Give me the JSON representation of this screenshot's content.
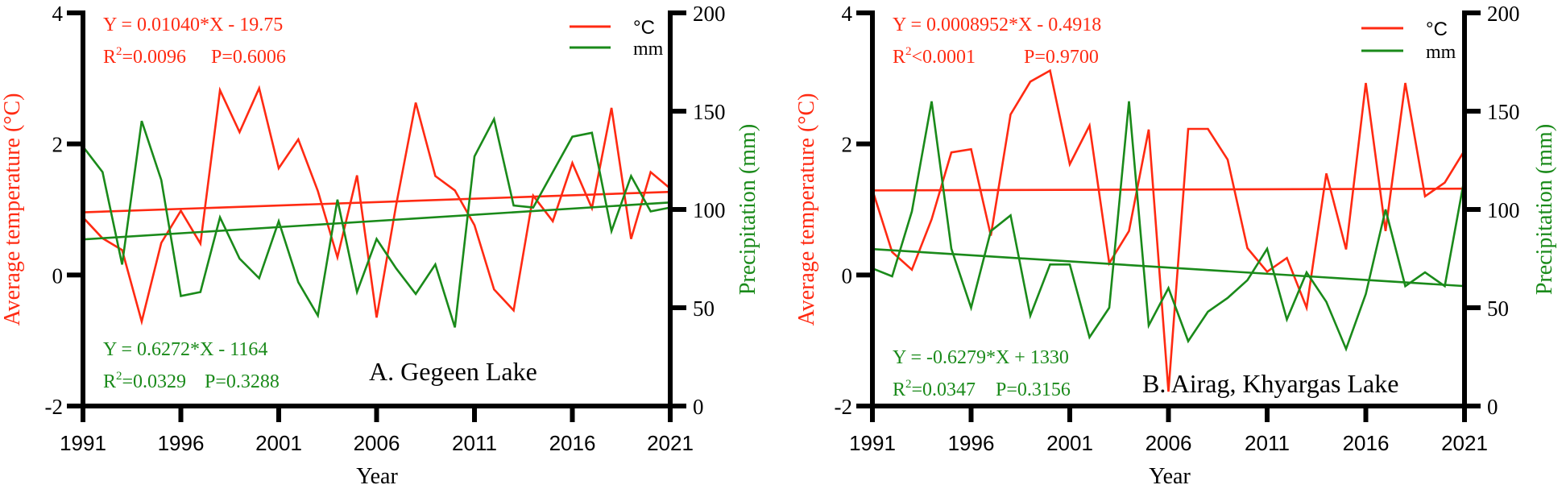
{
  "chart_data": [
    {
      "type": "line",
      "panel": "A",
      "title": "A. Gegeen Lake",
      "xlabel": "Year",
      "ylabel_left": "Average temperature (°C)",
      "ylabel_right": "Precipitation (mm)",
      "xlim": [
        1991,
        2021
      ],
      "ylim_left": [
        -2,
        4
      ],
      "ylim_right": [
        0,
        200
      ],
      "xticks": [
        "1991",
        "1996",
        "2001",
        "2006",
        "2011",
        "2016",
        "2021"
      ],
      "xtick_values": [
        1991,
        1996,
        2001,
        2006,
        2011,
        2016,
        2021
      ],
      "yticks_left": [
        "-2",
        "0",
        "2",
        "4"
      ],
      "ytick_left_values": [
        -2,
        0,
        2,
        4
      ],
      "yticks_right": [
        "0",
        "50",
        "100",
        "150",
        "200"
      ],
      "ytick_right_values": [
        0,
        50,
        100,
        150,
        200
      ],
      "grid": false,
      "legend": {
        "placement": "top-right",
        "entries": [
          "°C",
          "mm"
        ]
      },
      "x": [
        1991,
        1992,
        1993,
        1994,
        1995,
        1996,
        1997,
        1998,
        1999,
        2000,
        2001,
        2002,
        2003,
        2004,
        2005,
        2006,
        2007,
        2008,
        2009,
        2010,
        2011,
        2012,
        2013,
        2014,
        2015,
        2016,
        2017,
        2018,
        2019,
        2020,
        2021
      ],
      "series": [
        {
          "name": "°C",
          "axis": "left",
          "color": "#ff2a12",
          "values": [
            0.88,
            0.56,
            0.38,
            -0.71,
            0.49,
            0.98,
            0.48,
            2.82,
            2.18,
            2.85,
            1.63,
            2.07,
            1.28,
            0.27,
            1.52,
            -0.65,
            1.07,
            2.63,
            1.51,
            1.29,
            0.76,
            -0.22,
            -0.54,
            1.21,
            0.82,
            1.71,
            1.02,
            2.55,
            0.55,
            1.57,
            1.32
          ],
          "trend": {
            "slope": 0.0104,
            "intercept": -19.75
          },
          "equation": "Y = 0.01040*X - 19.75",
          "r2_label": "R",
          "r2_value": "=0.0096",
          "p_label": "P=0.6006"
        },
        {
          "name": "mm",
          "axis": "right",
          "color": "#1a8a1a",
          "values": [
            132,
            119,
            72,
            145,
            115,
            56,
            58,
            96,
            75,
            65,
            94,
            63,
            46,
            105,
            58,
            85,
            70,
            57,
            72,
            40,
            127,
            146,
            102,
            101,
            119,
            137,
            139,
            89,
            117,
            99,
            101
          ],
          "trend": {
            "slope": 0.6272,
            "intercept": -1164
          },
          "equation": "Y = 0.6272*X - 1164",
          "r2_label": "R",
          "r2_value": "=0.0329",
          "p_label": "P=0.3288"
        }
      ]
    },
    {
      "type": "line",
      "panel": "B",
      "title": "B. Airag, Khyargas Lake",
      "xlabel": "Year",
      "ylabel_left": "Average temperature (°C)",
      "ylabel_right": "Precipitation (mm)",
      "xlim": [
        1991,
        2021
      ],
      "ylim_left": [
        -2,
        4
      ],
      "ylim_right": [
        0,
        200
      ],
      "xticks": [
        "1991",
        "1996",
        "2001",
        "2006",
        "2011",
        "2016",
        "2021"
      ],
      "xtick_values": [
        1991,
        1996,
        2001,
        2006,
        2011,
        2016,
        2021
      ],
      "yticks_left": [
        "-2",
        "0",
        "2",
        "4"
      ],
      "ytick_left_values": [
        -2,
        0,
        2,
        4
      ],
      "yticks_right": [
        "0",
        "50",
        "100",
        "150",
        "200"
      ],
      "ytick_right_values": [
        0,
        50,
        100,
        150,
        200
      ],
      "grid": false,
      "legend": {
        "placement": "top-right",
        "entries": [
          "°C",
          "mm"
        ]
      },
      "x": [
        1991,
        1992,
        1993,
        1994,
        1995,
        1996,
        1997,
        1998,
        1999,
        2000,
        2001,
        2002,
        2003,
        2004,
        2005,
        2006,
        2007,
        2008,
        2009,
        2010,
        2011,
        2012,
        2013,
        2014,
        2015,
        2016,
        2017,
        2018,
        2019,
        2020,
        2021
      ],
      "series": [
        {
          "name": "°C",
          "axis": "left",
          "color": "#ff2a12",
          "values": [
            1.3,
            0.35,
            0.08,
            0.85,
            1.87,
            1.92,
            0.6,
            2.45,
            2.95,
            3.12,
            1.69,
            2.28,
            0.18,
            0.67,
            2.22,
            -1.78,
            2.23,
            2.23,
            1.76,
            0.41,
            0.05,
            0.26,
            -0.5,
            1.55,
            0.39,
            2.93,
            0.67,
            2.93,
            1.2,
            1.41,
            1.9
          ],
          "trend": {
            "slope": 0.0008952,
            "intercept": -0.4918
          },
          "equation": "Y = 0.0008952*X - 0.4918",
          "r2_label": "R",
          "r2_value": "<0.0001",
          "p_label": "P=0.9700"
        },
        {
          "name": "mm",
          "axis": "right",
          "color": "#1a8a1a",
          "values": [
            70,
            66,
            99,
            155,
            80,
            50,
            89,
            97,
            46,
            72,
            72,
            35,
            50,
            155,
            41,
            60,
            33,
            48,
            55,
            64,
            80,
            44,
            68,
            53,
            29,
            57,
            100,
            61,
            68,
            61,
            116
          ],
          "trend": {
            "slope": -0.6279,
            "intercept": 1330
          },
          "equation": "Y = -0.6279*X + 1330",
          "r2_label": "R",
          "r2_value": "=0.0347",
          "p_label": "P=0.3156"
        }
      ]
    }
  ]
}
